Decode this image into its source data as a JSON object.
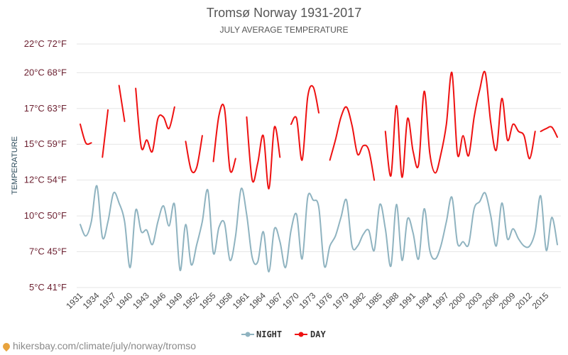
{
  "colors": {
    "night": "#8fb3c0",
    "day": "#ee1111",
    "grid": "#e6e6e6"
  },
  "watermark": "hikersbay.com/climate/july/norway/tromso",
  "chart_data": {
    "type": "line",
    "title": "Tromsø Norway 1931-2017",
    "subtitle": "JULY AVERAGE TEMPERATURE",
    "ylabel": "TEMPERATURE",
    "ylim": [
      5,
      22
    ],
    "yticks": [
      {
        "value": 5,
        "label": "5°C 41°F"
      },
      {
        "value": 7.5,
        "label": "7°C 45°F"
      },
      {
        "value": 10,
        "label": "10°C 50°F"
      },
      {
        "value": 12.5,
        "label": "12°C 54°F"
      },
      {
        "value": 15,
        "label": "15°C 59°F"
      },
      {
        "value": 17.5,
        "label": "17°C 63°F"
      },
      {
        "value": 20,
        "label": "20°C 68°F"
      },
      {
        "value": 22.5,
        "label": "22°C 72°F"
      }
    ],
    "xlim": [
      1931,
      2017
    ],
    "xticks": [
      1931,
      1934,
      1937,
      1940,
      1943,
      1946,
      1949,
      1952,
      1955,
      1958,
      1961,
      1964,
      1967,
      1970,
      1973,
      1976,
      1979,
      1982,
      1985,
      1988,
      1991,
      1994,
      1997,
      2000,
      2003,
      2006,
      2009,
      2012,
      2015
    ],
    "legend": {
      "position": "bottom",
      "items": [
        "NIGHT",
        "DAY"
      ]
    },
    "series": [
      {
        "name": "NIGHT",
        "x": [
          1931,
          1932,
          1933,
          1934,
          1935,
          1936,
          1937,
          1938,
          1939,
          1940,
          1941,
          1942,
          1943,
          1944,
          1945,
          1946,
          1947,
          1948,
          1949,
          1950,
          1951,
          1952,
          1953,
          1954,
          1955,
          1956,
          1957,
          1958,
          1959,
          1960,
          1961,
          1962,
          1963,
          1964,
          1965,
          1966,
          1967,
          1968,
          1969,
          1970,
          1971,
          1972,
          1973,
          1974,
          1975,
          1976,
          1977,
          1978,
          1979,
          1980,
          1981,
          1982,
          1983,
          1984,
          1985,
          1986,
          1987,
          1988,
          1989,
          1990,
          1991,
          1992,
          1993,
          1994,
          1995,
          1996,
          1997,
          1998,
          1999,
          2000,
          2001,
          2002,
          2003,
          2004,
          2005,
          2006,
          2007,
          2008,
          2009,
          2010,
          2011,
          2012,
          2013,
          2014,
          2015,
          2016,
          2017
        ],
        "y": [
          9.4,
          8.6,
          9.6,
          12.1,
          8.5,
          9.6,
          11.6,
          10.9,
          9.6,
          6.4,
          10.4,
          8.9,
          9.0,
          8.0,
          9.6,
          10.7,
          9.3,
          10.8,
          6.2,
          9.4,
          6.6,
          8.0,
          9.6,
          11.8,
          7.4,
          9.2,
          9.5,
          6.9,
          8.6,
          11.9,
          10.1,
          7.1,
          6.8,
          8.9,
          6.1,
          9.1,
          8.2,
          6.4,
          9.0,
          10.1,
          7.0,
          11.3,
          11.1,
          10.6,
          6.5,
          7.9,
          8.6,
          9.9,
          11.1,
          7.9,
          7.9,
          8.7,
          9.0,
          7.6,
          10.8,
          9.1,
          6.5,
          10.8,
          6.9,
          9.8,
          8.8,
          7.0,
          10.5,
          7.6,
          7.0,
          7.9,
          9.6,
          11.3,
          8.1,
          8.2,
          8.0,
          10.5,
          11.0,
          11.6,
          10.0,
          7.9,
          10.9,
          8.4,
          9.1,
          8.4,
          7.9,
          7.9,
          8.9,
          11.4,
          7.6,
          9.9,
          8.0
        ]
      },
      {
        "name": "DAY",
        "x": [
          1931,
          1932,
          1933,
          null,
          1935,
          1936,
          null,
          1938,
          1939,
          null,
          1941,
          1942,
          1943,
          1944,
          1945,
          1946,
          1947,
          1948,
          null,
          1950,
          1951,
          1952,
          1953,
          null,
          1955,
          1956,
          1957,
          1958,
          1959,
          null,
          1961,
          1962,
          1963,
          1964,
          1965,
          1966,
          1967,
          null,
          1969,
          1970,
          1971,
          1972,
          1973,
          1974,
          null,
          1976,
          1977,
          1978,
          1979,
          1980,
          1981,
          1982,
          1983,
          1984,
          null,
          1986,
          1987,
          1988,
          1989,
          1990,
          1991,
          1992,
          1993,
          1994,
          1995,
          1996,
          1997,
          1998,
          1999,
          2000,
          2001,
          2002,
          2003,
          2004,
          2005,
          2006,
          2007,
          2008,
          2009,
          2010,
          2011,
          2012,
          2013,
          null,
          2014,
          2015,
          2016,
          2017
        ],
        "y": [
          16.4,
          15.1,
          15.1,
          null,
          14.1,
          17.4,
          null,
          19.1,
          16.6,
          null,
          18.9,
          14.8,
          15.3,
          14.5,
          16.8,
          16.9,
          16.1,
          17.6,
          null,
          15.2,
          13.2,
          13.4,
          15.6,
          null,
          13.8,
          17.0,
          17.5,
          13.2,
          14.0,
          null,
          16.9,
          12.5,
          13.7,
          15.6,
          11.9,
          16.2,
          14.1,
          null,
          16.4,
          16.8,
          13.9,
          18.3,
          19.0,
          17.2,
          null,
          13.9,
          15.3,
          16.9,
          17.6,
          16.3,
          14.3,
          14.9,
          14.6,
          12.5,
          null,
          15.9,
          12.8,
          17.7,
          12.7,
          16.8,
          14.5,
          13.6,
          18.7,
          14.4,
          13.0,
          14.3,
          16.4,
          20.0,
          14.3,
          15.6,
          14.2,
          16.9,
          18.8,
          20.0,
          16.5,
          14.6,
          18.2,
          15.3,
          16.4,
          15.9,
          15.6,
          14.0,
          15.9,
          null,
          15.9,
          16.1,
          16.2,
          15.5
        ]
      }
    ]
  }
}
